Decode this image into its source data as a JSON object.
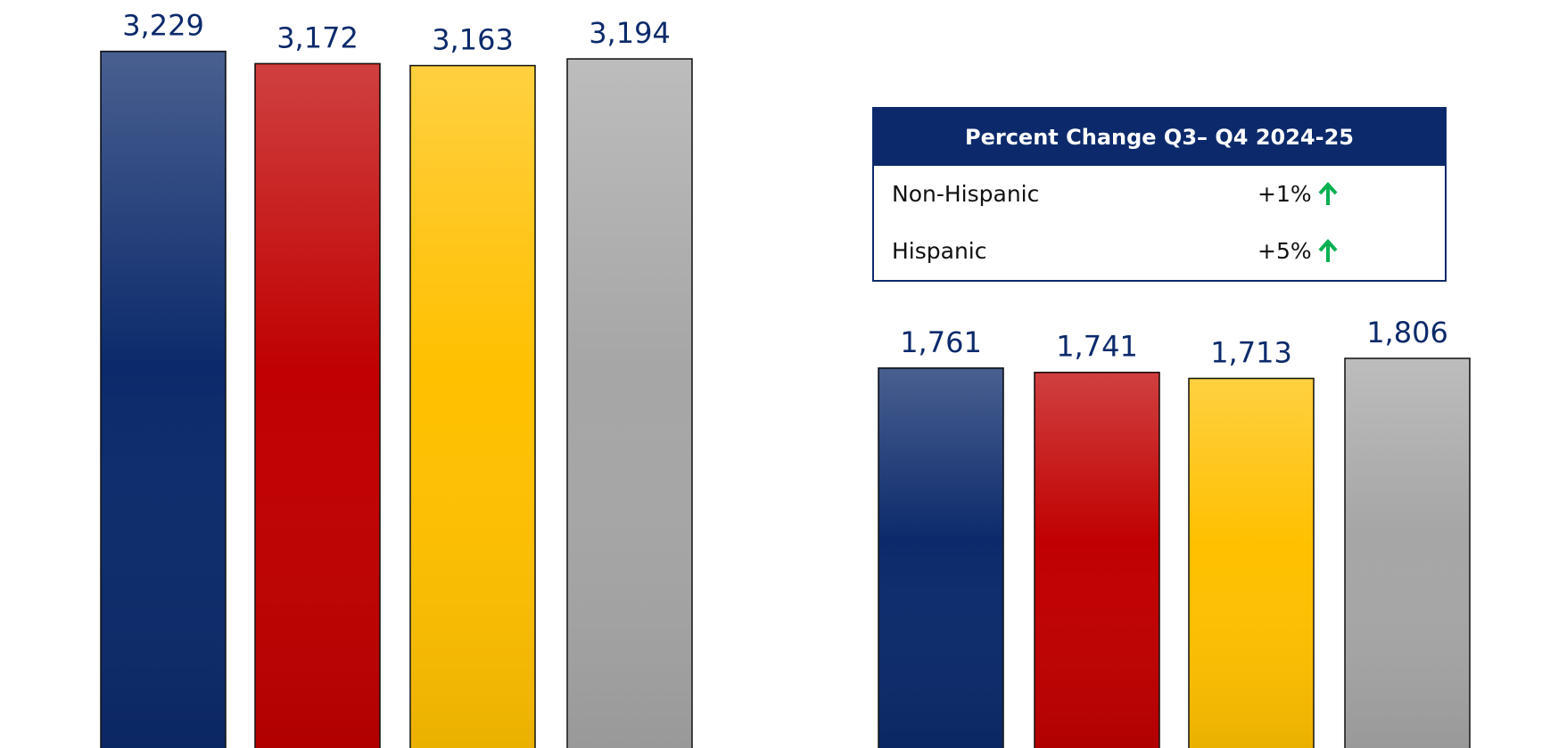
{
  "chart_data": [
    {
      "type": "bar",
      "categories": [
        null,
        null,
        null,
        null
      ],
      "values": [
        3229,
        3172,
        3163,
        3194
      ],
      "value_labels": [
        "3,229",
        "3,172",
        "3,163",
        "3,194"
      ],
      "colors": [
        "#0c2a6b",
        "#c00000",
        "#ffc000",
        "#a6a6a6"
      ]
    },
    {
      "type": "bar",
      "categories": [
        null,
        null,
        null,
        null
      ],
      "values": [
        1761,
        1741,
        1713,
        1806
      ],
      "value_labels": [
        "1,761",
        "1,741",
        "1,713",
        "1,806"
      ],
      "colors": [
        "#0c2a6b",
        "#c00000",
        "#ffc000",
        "#a6a6a6"
      ]
    }
  ],
  "table": {
    "title": "Percent Change Q3– Q4 2024-25",
    "rows": [
      [
        "Non-Hispanic",
        "+1%"
      ],
      [
        "Hispanic",
        "+5%"
      ]
    ]
  }
}
